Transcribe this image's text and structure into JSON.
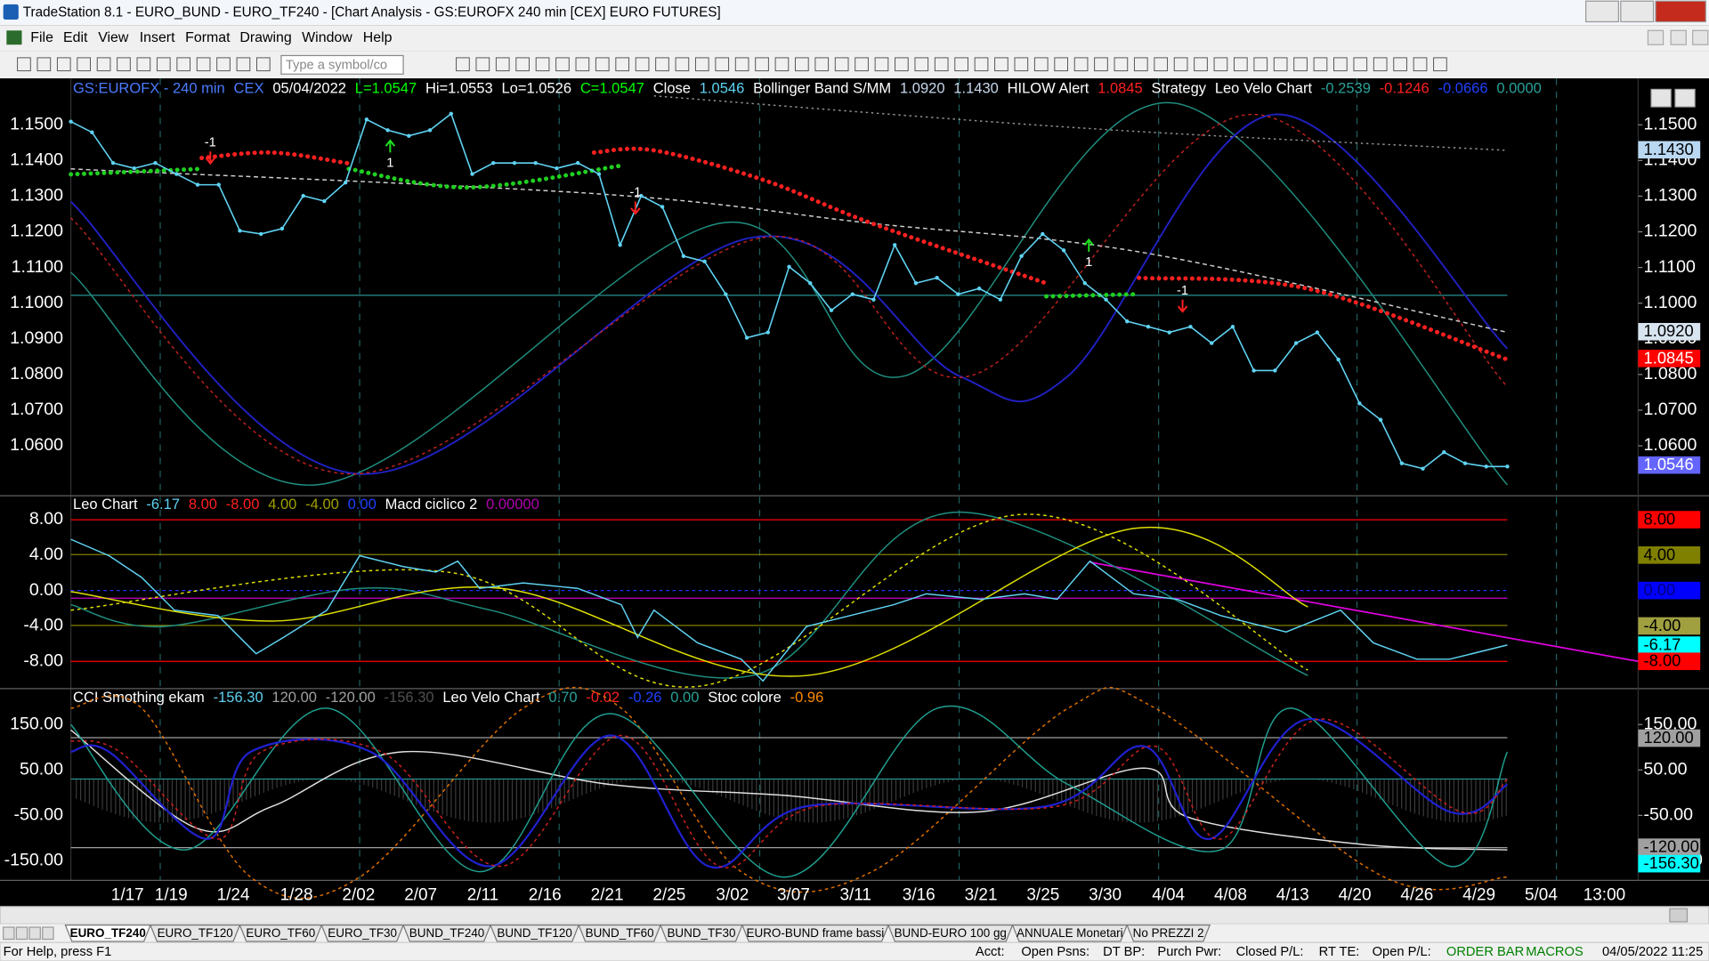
{
  "window": {
    "title": "TradeStation 8.1 - EURO_BUND - EURO_TF240 - [Chart Analysis - GS:EUROFX  240 min  [CEX] EURO FUTURES]",
    "menu": [
      "File",
      "Edit",
      "View",
      "Insert",
      "Format",
      "Drawing",
      "Window",
      "Help"
    ],
    "symbol_input": "Type a symbol/co"
  },
  "chart_data": [
    {
      "type": "line",
      "header": [
        {
          "text": "GS:EUROFX - 240 min",
          "color": "#4a7bff"
        },
        {
          "text": "CEX",
          "color": "#4a7bff"
        },
        {
          "text": "05/04/2022",
          "color": "#ffffff"
        },
        {
          "text": "L=1.0547",
          "color": "#00ff00"
        },
        {
          "text": "Hi=1.0553",
          "color": "#ffffff"
        },
        {
          "text": "Lo=1.0526",
          "color": "#ffffff"
        },
        {
          "text": "C=1.0547",
          "color": "#00ff00"
        },
        {
          "text": "Close",
          "color": "#ffffff"
        },
        {
          "text": "1.0546",
          "color": "#5fd3f3"
        },
        {
          "text": "Bollinger Band S/MM",
          "color": "#ffffff"
        },
        {
          "text": "1.0920",
          "color": "#c8d8ec"
        },
        {
          "text": "1.1430",
          "color": "#c8d8ec"
        },
        {
          "text": "HILOW Alert",
          "color": "#ffffff"
        },
        {
          "text": "1.0845",
          "color": "#ff2020"
        },
        {
          "text": "Strategy",
          "color": "#ffffff"
        },
        {
          "text": "Leo Velo Chart",
          "color": "#ffffff"
        },
        {
          "text": "-0.2539",
          "color": "#2aa198"
        },
        {
          "text": "-0.1246",
          "color": "#ff2020"
        },
        {
          "text": "-0.0666",
          "color": "#2040ff"
        },
        {
          "text": "0.0000",
          "color": "#2aa198"
        }
      ],
      "values": [
        1.1509,
        1.1479,
        1.1393,
        1.1378,
        1.1393,
        1.1362,
        1.1332,
        1.1332,
        1.1203,
        1.1194,
        1.1209,
        1.1301,
        1.1286,
        1.1338,
        1.1515,
        1.1485,
        1.1469,
        1.1485,
        1.1531,
        1.1362,
        1.1393,
        1.1393,
        1.1393,
        1.1378,
        1.1393,
        1.1362,
        1.1163,
        1.1301,
        1.127,
        1.1132,
        1.1117,
        1.1025,
        1.0903,
        1.0918,
        1.1102,
        1.1056,
        1.098,
        1.1025,
        1.101,
        1.1163,
        1.1056,
        1.1071,
        1.1025,
        1.1041,
        1.101,
        1.1132,
        1.1194,
        1.1148,
        1.1056,
        1.101,
        1.0949,
        1.0934,
        1.0918,
        1.0934,
        1.0888,
        1.0934,
        1.0811,
        1.0811,
        1.0888,
        1.0918,
        1.0842,
        1.0719,
        1.0673,
        1.0551,
        1.0536,
        1.0582,
        1.0551,
        1.0542,
        1.0542
      ],
      "color": "#5fd3f3",
      "ylim": [
        1.046,
        1.163
      ],
      "yticks": [
        {
          "value": 1.15,
          "label": "1.1500"
        },
        {
          "value": 1.14,
          "label": "1.1400"
        },
        {
          "value": 1.13,
          "label": "1.1300"
        },
        {
          "value": 1.12,
          "label": "1.1200"
        },
        {
          "value": 1.11,
          "label": "1.1100"
        },
        {
          "value": 1.1,
          "label": "1.1000"
        },
        {
          "value": 1.09,
          "label": "1.0900"
        },
        {
          "value": 1.08,
          "label": "1.0800"
        },
        {
          "value": 1.07,
          "label": "1.0700"
        },
        {
          "value": 1.06,
          "label": "1.0600"
        }
      ],
      "axis_markers": [
        {
          "value": 1.143,
          "label": "1.1430",
          "color": "#b9d7f0",
          "text_color": "#000000"
        },
        {
          "value": 1.092,
          "label": "1.0920",
          "color": "#d8e4f0",
          "text_color": "#000000"
        },
        {
          "value": 1.0845,
          "label": "1.0845",
          "color": "#ff0000",
          "text_color": "#ffffff"
        },
        {
          "value": 1.0546,
          "label": "1.0546",
          "color": "#6464ff",
          "text_color": "#ffffff"
        }
      ],
      "annotations": [
        "-1",
        "1",
        "-1",
        "1",
        "-1"
      ]
    },
    {
      "type": "indicator",
      "header": [
        {
          "text": "Leo Chart",
          "color": "#ffffff"
        },
        {
          "text": "-6.17",
          "color": "#5fd3f3"
        },
        {
          "text": "8.00",
          "color": "#ff2020"
        },
        {
          "text": "-8.00",
          "color": "#ff2020"
        },
        {
          "text": "4.00",
          "color": "#a0a000"
        },
        {
          "text": "-4.00",
          "color": "#a0a000"
        },
        {
          "text": "0.00",
          "color": "#2040ff"
        },
        {
          "text": "Macd ciclico 2",
          "color": "#ffffff"
        },
        {
          "text": "0.00000",
          "color": "#b000b0"
        }
      ],
      "ylim": [
        -11.08,
        10.7
      ],
      "yticks": [
        {
          "value": 8,
          "label": "8.00"
        },
        {
          "value": 4,
          "label": "4.00"
        },
        {
          "value": 0,
          "label": "0.00"
        },
        {
          "value": -4,
          "label": "-4.00"
        },
        {
          "value": -8,
          "label": "-8.00"
        }
      ],
      "axis_markers": [
        {
          "value": 8,
          "label": "8.00",
          "color": "#ff0000",
          "text_color": "#000000"
        },
        {
          "value": 4,
          "label": "4.00",
          "color": "#808000",
          "text_color": "#000000"
        },
        {
          "value": 0,
          "label": "0.00",
          "color": "#0000ff",
          "text_color": "#000080"
        },
        {
          "value": -4,
          "label": "-4.00",
          "color": "#a0a040",
          "text_color": "#000000"
        },
        {
          "value": -6.17,
          "label": "-6.17",
          "color": "#00ffff",
          "text_color": "#000000"
        },
        {
          "value": -8,
          "label": "-8.00",
          "color": "#ff0000",
          "text_color": "#000000"
        }
      ]
    },
    {
      "type": "indicator",
      "header": [
        {
          "text": "CCI Smothing ekam",
          "color": "#ffffff"
        },
        {
          "text": "-156.30",
          "color": "#5fd3f3"
        },
        {
          "text": "120.00",
          "color": "#a0a0a0"
        },
        {
          "text": "-120.00",
          "color": "#a0a0a0"
        },
        {
          "text": "-156.30",
          "color": "#505050"
        },
        {
          "text": "Leo Velo Chart",
          "color": "#ffffff"
        },
        {
          "text": "0.70",
          "color": "#2aa198"
        },
        {
          "text": "-0.02",
          "color": "#ff2020"
        },
        {
          "text": "-0.26",
          "color": "#2040ff"
        },
        {
          "text": "0.00",
          "color": "#2aa198"
        },
        {
          "text": "Stoc colore",
          "color": "#ffffff"
        },
        {
          "text": "-0.96",
          "color": "#ff8c00"
        }
      ],
      "ylim": [
        -193,
        229
      ],
      "yticks": [
        {
          "value": 150,
          "label": "150.00"
        },
        {
          "value": 50,
          "label": "50.00"
        },
        {
          "value": -50,
          "label": "-50.00"
        },
        {
          "value": -150,
          "label": "-150.00"
        }
      ],
      "axis_markers": [
        {
          "value": 120,
          "label": "120.00",
          "color": "#a0a0a0",
          "text_color": "#000000"
        },
        {
          "value": -120,
          "label": "-120.00",
          "color": "#a0a0a0",
          "text_color": "#000000"
        },
        {
          "value": -156.3,
          "label": "-156.30",
          "color": "#00ffff",
          "text_color": "#000000"
        }
      ]
    }
  ],
  "date_labels": [
    "1/17",
    "1/19",
    "1/24",
    "1/28",
    "2/02",
    "2/07",
    "2/11",
    "2/16",
    "2/21",
    "2/25",
    "3/02",
    "3/07",
    "3/11",
    "3/16",
    "3/21",
    "3/25",
    "3/30",
    "4/04",
    "4/08",
    "4/13",
    "4/20",
    "4/26",
    "4/29",
    "5/04",
    "13:00"
  ],
  "tabs": [
    "EURO_TF240",
    "EURO_TF120",
    "EURO_TF60",
    "EURO_TF30",
    "BUND_TF240",
    "BUND_TF120",
    "BUND_TF60",
    "BUND_TF30",
    "EURO-BUND frame bassi",
    "BUND-EURO 100 gg",
    "ANNUALE Monetari",
    "No PREZZI 2"
  ],
  "status": [
    "For Help, press F1",
    "Acct:",
    "Open Psns:",
    "DT BP:",
    "Purch Pwr:",
    "Closed P/L:",
    "RT TE:",
    "Open P/L:",
    "ORDER BAR",
    "MACROS",
    "04/05/2022 11:25"
  ]
}
